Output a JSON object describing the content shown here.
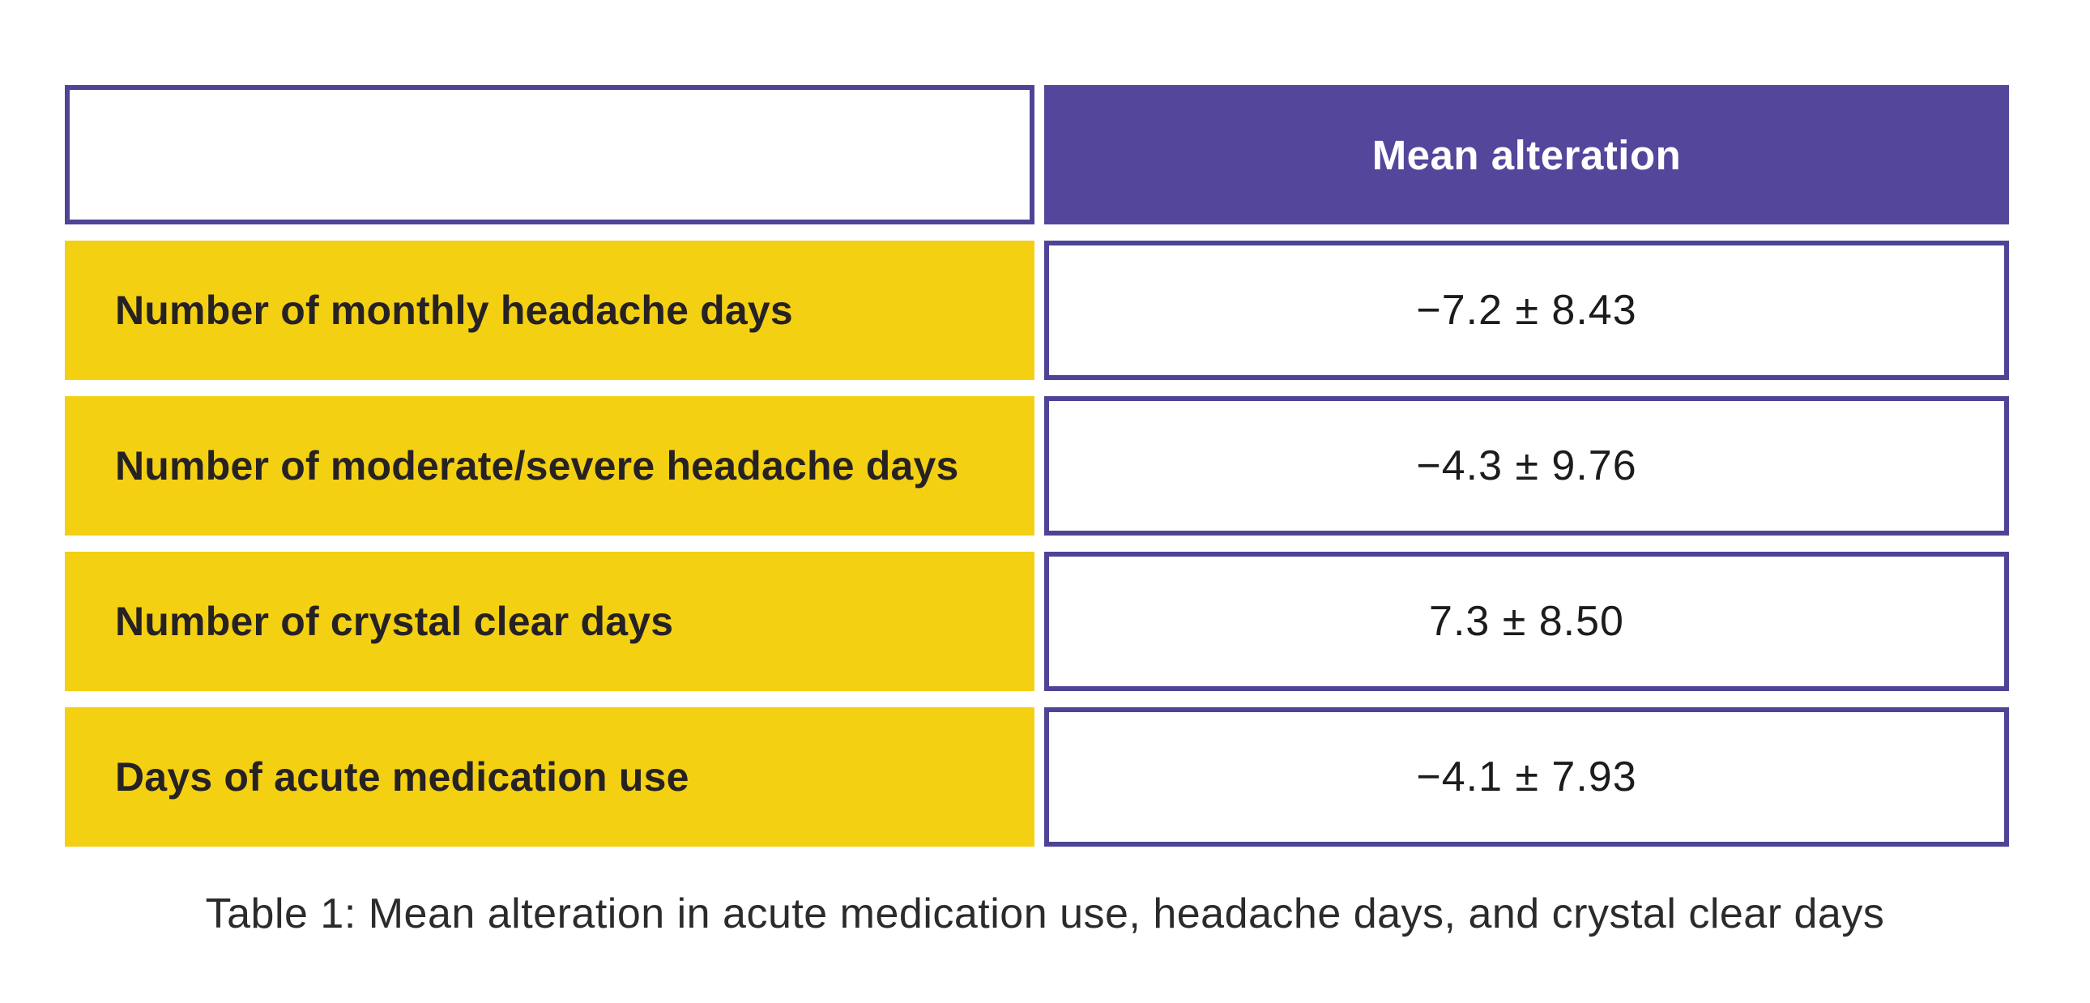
{
  "table": {
    "header": {
      "corner_label": "",
      "value_column_label": "Mean alteration"
    },
    "rows": [
      {
        "label": "Number of monthly headache days",
        "value": "−7.2 ± 8.43"
      },
      {
        "label": "Number of moderate/severe headache days",
        "value": "−4.3 ± 9.76"
      },
      {
        "label": "Number of crystal clear days",
        "value": "7.3 ± 8.50"
      },
      {
        "label": "Days of acute medication use",
        "value": "−4.1 ± 7.93"
      }
    ],
    "caption": "Table 1: Mean alteration in acute medication use, headache days, and crystal clear days"
  },
  "chart_data": {
    "type": "table",
    "title": "Table 1: Mean alteration in acute medication use, headache days, and crystal clear days",
    "columns": [
      "",
      "Mean alteration"
    ],
    "rows": [
      [
        "Number of monthly headache days",
        "−7.2 ± 8.43"
      ],
      [
        "Number of moderate/severe headache days",
        "−4.3 ± 9.76"
      ],
      [
        "Number of crystal clear days",
        "7.3 ± 8.50"
      ],
      [
        "Days of acute medication use",
        "−4.1 ± 7.93"
      ]
    ],
    "series": [
      {
        "name": "mean",
        "values": [
          -7.2,
          -4.3,
          7.3,
          -4.1
        ]
      },
      {
        "name": "sd",
        "values": [
          8.43,
          9.76,
          8.5,
          7.93
        ]
      }
    ]
  },
  "colors": {
    "purple_fill": "#54469B",
    "purple_border": "#4E4497",
    "yellow_fill": "#F4D013",
    "label_text": "#262223",
    "value_text": "#1C1C1C",
    "header_text": "#FFFFFF",
    "caption_text": "#2B2B2B"
  }
}
